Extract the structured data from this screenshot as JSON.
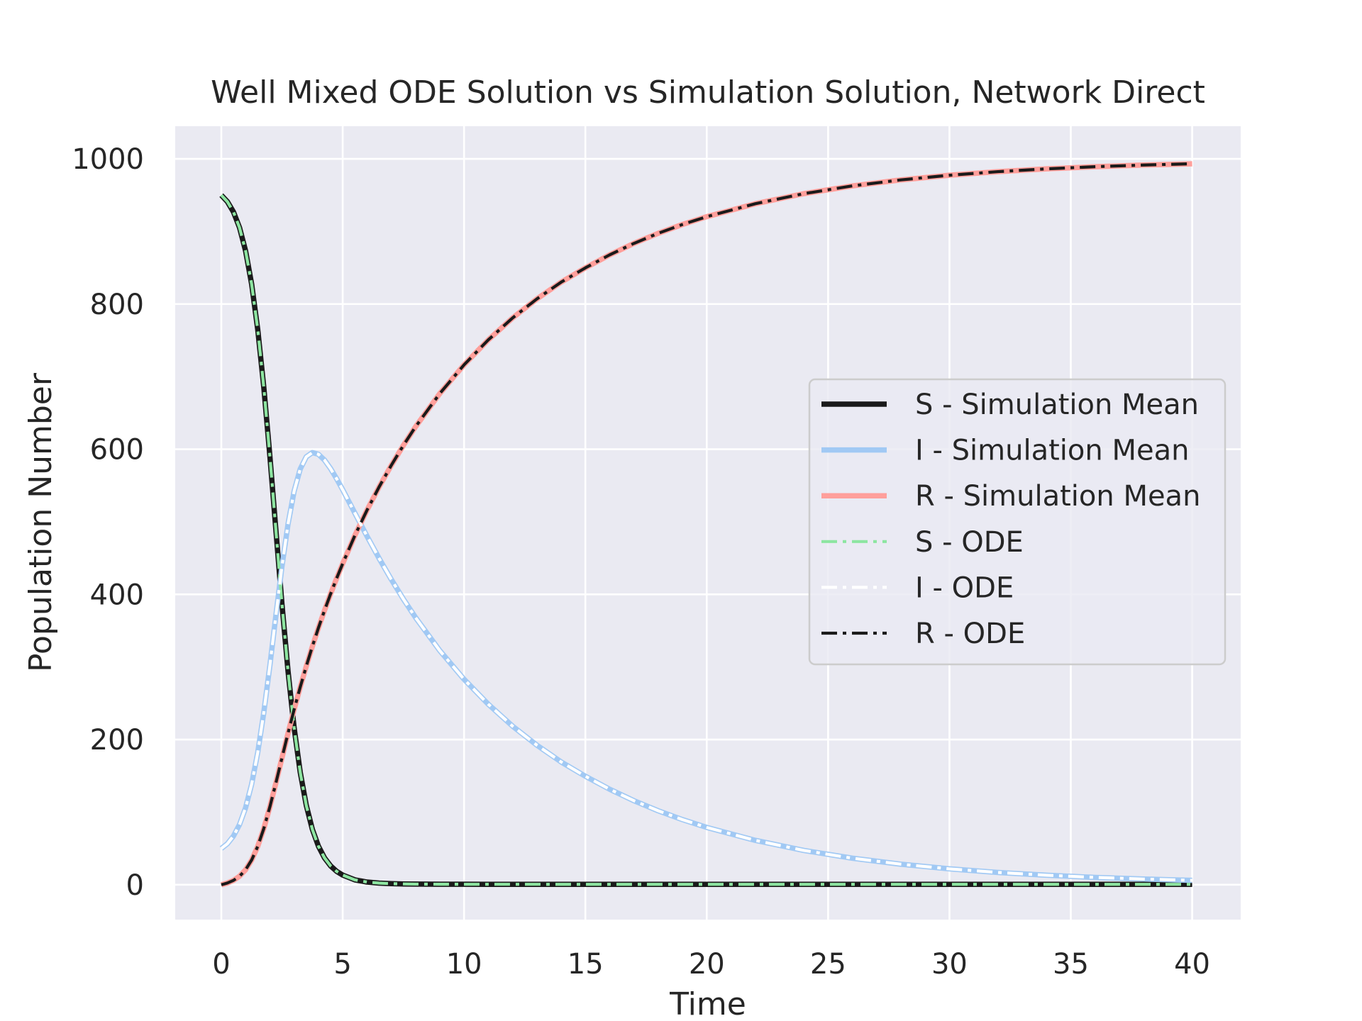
{
  "chart_data": {
    "type": "line",
    "title": "Well Mixed ODE Solution vs Simulation Solution, Network Direct",
    "xlabel": "Time",
    "ylabel": "Population Number",
    "xlim": [
      -1.9,
      42
    ],
    "ylim": [
      -48,
      1045
    ],
    "xticks": [
      0,
      5,
      10,
      15,
      20,
      25,
      30,
      35,
      40
    ],
    "yticks": [
      0,
      200,
      400,
      600,
      800,
      1000
    ],
    "grid": true,
    "background": "#eaeaf2",
    "legend_position": "center-right",
    "t": [
      0,
      0.25,
      0.5,
      0.75,
      1,
      1.25,
      1.5,
      1.75,
      2,
      2.25,
      2.5,
      2.75,
      3,
      3.25,
      3.5,
      3.75,
      4,
      4.25,
      4.5,
      4.75,
      5,
      5.5,
      6,
      6.5,
      7,
      7.5,
      8,
      9,
      10,
      11,
      12,
      13,
      14,
      15,
      16,
      17,
      18,
      19,
      20,
      22,
      24,
      26,
      28,
      30,
      32,
      34,
      36,
      38,
      40
    ],
    "S": [
      950,
      941.03,
      926.9,
      905.27,
      873.16,
      827.25,
      764.93,
      685.24,
      590.66,
      487.85,
      386.03,
      293.61,
      216.07,
      155.11,
      109.41,
      76.39,
      53.18,
      37.1,
      26.08,
      18.53,
      13.36,
      6.78,
      3.74,
      2.28,
      1.53,
      1.14,
      0.92,
      0.74,
      0.67,
      0.64,
      0.63,
      0.63,
      0.62,
      0.62,
      0.62,
      0.62,
      0.62,
      0.62,
      0.62,
      0.62,
      0.62,
      0.62,
      0.62,
      0.62,
      0.62,
      0.62,
      0.62,
      0.62,
      0.62
    ],
    "I": [
      50,
      56.54,
      67.08,
      82.97,
      106.13,
      138.62,
      182.18,
      237.3,
      302.02,
      371.63,
      439.01,
      497.39,
      542.38,
      572.71,
      589.51,
      595.37,
      593.07,
      585.08,
      573.38,
      559.41,
      544.2,
      512.21,
      480.35,
      449.72,
      420.76,
      393.6,
      368.23,
      322.59,
      283.08,
      248.67,
      218.51,
      192.32,
      169.24,
      149.5,
      131.6,
      115.8,
      101.93,
      89.73,
      79.01,
      61.17,
      47.31,
      36.62,
      28.33,
      21.93,
      16.97,
      13.14,
      10.17,
      7.87,
      6.09
    ],
    "R": [
      0,
      2.43,
      6.02,
      11.76,
      20.71,
      34.13,
      52.89,
      77.46,
      107.32,
      140.52,
      174.96,
      209.0,
      241.55,
      272.18,
      301.08,
      328.24,
      353.75,
      377.82,
      400.54,
      422.06,
      442.44,
      481.01,
      515.91,
      548.0,
      577.71,
      605.26,
      630.85,
      676.67,
      716.25,
      750.69,
      780.86,
      807.05,
      830.14,
      849.88,
      867.78,
      883.58,
      897.45,
      909.65,
      920.37,
      938.21,
      952.07,
      962.76,
      971.05,
      977.45,
      982.41,
      986.24,
      989.21,
      991.51,
      993.29
    ],
    "series": [
      {
        "name": "S - Simulation Mean",
        "key": "S",
        "color": "#1a1a1a",
        "style": "solid"
      },
      {
        "name": "I - Simulation Mean",
        "key": "I",
        "color": "#a1c9f4",
        "style": "solid"
      },
      {
        "name": "R - Simulation Mean",
        "key": "R",
        "color": "#ff9f9b",
        "style": "solid"
      },
      {
        "name": "S - ODE",
        "key": "S",
        "color": "#8de5a1",
        "style": "dashdot"
      },
      {
        "name": "I - ODE",
        "key": "I",
        "color": "#ffffff",
        "style": "dashdot"
      },
      {
        "name": "R - ODE",
        "key": "R",
        "color": "#1a1a1a",
        "style": "dashdot"
      }
    ]
  }
}
